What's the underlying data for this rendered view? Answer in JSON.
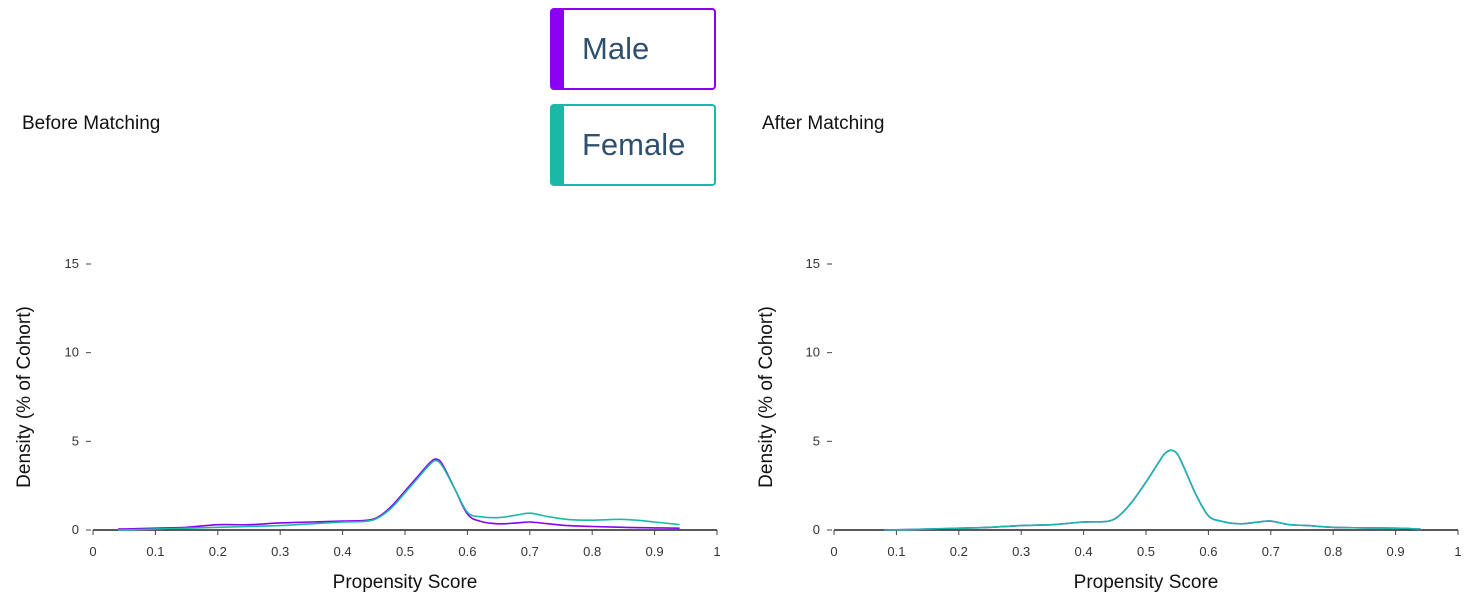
{
  "legend": [
    {
      "label": "Male",
      "color": "#8a00f0"
    },
    {
      "label": "Female",
      "color": "#1ab9a7"
    }
  ],
  "chart_data": [
    {
      "type": "line",
      "title": "Before Matching",
      "xlabel": "Propensity Score",
      "ylabel": "Density (% of Cohort)",
      "xlim": [
        0,
        1
      ],
      "ylim": [
        0,
        15
      ],
      "xticks": [
        "0",
        "0.1",
        "0.2",
        "0.3",
        "0.4",
        "0.5",
        "0.6",
        "0.7",
        "0.8",
        "0.9",
        "1"
      ],
      "yticks": [
        "0",
        "5",
        "10",
        "15"
      ],
      "grid": false,
      "series": [
        {
          "name": "Male",
          "color": "#8a00f0",
          "x": [
            0.04,
            0.1,
            0.15,
            0.2,
            0.25,
            0.3,
            0.35,
            0.4,
            0.44,
            0.46,
            0.48,
            0.5,
            0.52,
            0.54,
            0.55,
            0.56,
            0.58,
            0.6,
            0.62,
            0.65,
            0.68,
            0.7,
            0.73,
            0.76,
            0.8,
            0.85,
            0.9,
            0.94
          ],
          "y": [
            0.05,
            0.1,
            0.15,
            0.3,
            0.3,
            0.4,
            0.45,
            0.5,
            0.55,
            0.8,
            1.4,
            2.2,
            3.0,
            3.8,
            4.0,
            3.7,
            2.3,
            0.9,
            0.5,
            0.35,
            0.4,
            0.45,
            0.35,
            0.25,
            0.2,
            0.15,
            0.12,
            0.1
          ]
        },
        {
          "name": "Female",
          "color": "#1ab9a7",
          "x": [
            0.04,
            0.1,
            0.15,
            0.2,
            0.25,
            0.3,
            0.35,
            0.4,
            0.44,
            0.46,
            0.48,
            0.5,
            0.52,
            0.54,
            0.55,
            0.56,
            0.58,
            0.6,
            0.62,
            0.65,
            0.68,
            0.7,
            0.73,
            0.76,
            0.8,
            0.85,
            0.9,
            0.94
          ],
          "y": [
            0.0,
            0.05,
            0.1,
            0.15,
            0.2,
            0.25,
            0.35,
            0.45,
            0.5,
            0.75,
            1.3,
            2.1,
            2.9,
            3.7,
            3.9,
            3.6,
            2.3,
            1.0,
            0.75,
            0.7,
            0.85,
            0.95,
            0.75,
            0.6,
            0.55,
            0.6,
            0.45,
            0.3
          ]
        }
      ]
    },
    {
      "type": "line",
      "title": "After Matching",
      "xlabel": "Propensity Score",
      "ylabel": "Density (% of Cohort)",
      "xlim": [
        0,
        1
      ],
      "ylim": [
        0,
        15
      ],
      "xticks": [
        "0",
        "0.1",
        "0.2",
        "0.3",
        "0.4",
        "0.5",
        "0.6",
        "0.7",
        "0.8",
        "0.9",
        "1"
      ],
      "yticks": [
        "0",
        "5",
        "10",
        "15"
      ],
      "grid": false,
      "series": [
        {
          "name": "Male",
          "color": "#8a00f0",
          "x": [
            0.08,
            0.15,
            0.2,
            0.25,
            0.3,
            0.35,
            0.4,
            0.44,
            0.46,
            0.48,
            0.5,
            0.52,
            0.53,
            0.54,
            0.55,
            0.56,
            0.58,
            0.6,
            0.62,
            0.65,
            0.68,
            0.7,
            0.73,
            0.76,
            0.8,
            0.85,
            0.9,
            0.94
          ],
          "y": [
            0.0,
            0.05,
            0.1,
            0.15,
            0.25,
            0.3,
            0.45,
            0.5,
            0.9,
            1.7,
            2.7,
            3.8,
            4.3,
            4.5,
            4.3,
            3.6,
            2.0,
            0.8,
            0.5,
            0.35,
            0.45,
            0.5,
            0.3,
            0.25,
            0.15,
            0.12,
            0.1,
            0.05
          ]
        },
        {
          "name": "Female",
          "color": "#1ab9a7",
          "x": [
            0.08,
            0.15,
            0.2,
            0.25,
            0.3,
            0.35,
            0.4,
            0.44,
            0.46,
            0.48,
            0.5,
            0.52,
            0.53,
            0.54,
            0.55,
            0.56,
            0.58,
            0.6,
            0.62,
            0.65,
            0.68,
            0.7,
            0.73,
            0.76,
            0.8,
            0.85,
            0.9,
            0.94
          ],
          "y": [
            0.0,
            0.05,
            0.1,
            0.15,
            0.25,
            0.3,
            0.45,
            0.5,
            0.9,
            1.7,
            2.7,
            3.8,
            4.3,
            4.5,
            4.3,
            3.6,
            2.0,
            0.8,
            0.5,
            0.35,
            0.45,
            0.5,
            0.3,
            0.25,
            0.15,
            0.12,
            0.1,
            0.05
          ]
        }
      ]
    }
  ]
}
